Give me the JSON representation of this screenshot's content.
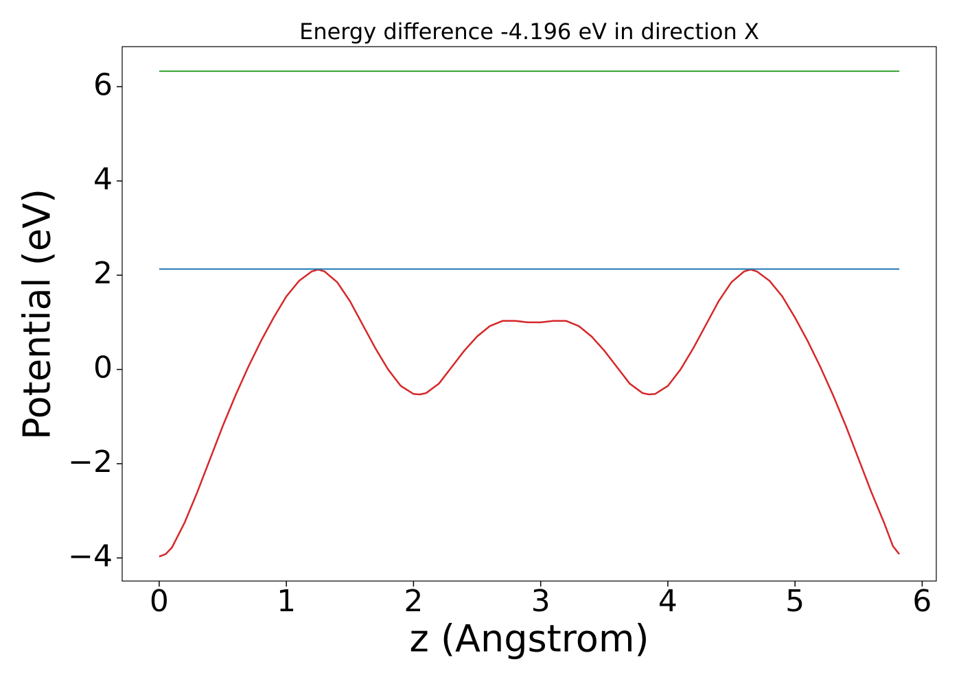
{
  "chart_data": {
    "type": "line",
    "title": "Energy difference -4.196 eV in direction X",
    "xlabel": "z (Angstrom)",
    "ylabel": "Potential (eV)",
    "xlim": [
      -0.291,
      6.111
    ],
    "ylim": [
      -4.49,
      6.85
    ],
    "xticks": [
      0,
      1,
      2,
      3,
      4,
      5,
      6
    ],
    "yticks": [
      {
        "value": -4,
        "label": "−4"
      },
      {
        "value": -2,
        "label": "−2"
      },
      0,
      2,
      4,
      6
    ],
    "grid": false,
    "series": [
      {
        "color": "#d62728",
        "x": [
          0,
          0.05,
          0.1,
          0.2,
          0.3,
          0.4,
          0.5,
          0.6,
          0.7,
          0.8,
          0.9,
          1.0,
          1.1,
          1.2,
          1.25,
          1.3,
          1.4,
          1.5,
          1.6,
          1.7,
          1.8,
          1.9,
          2.0,
          2.05,
          2.1,
          2.2,
          2.3,
          2.4,
          2.5,
          2.6,
          2.7,
          2.8,
          2.9,
          3.0,
          3.1,
          3.2,
          3.3,
          3.4,
          3.5,
          3.6,
          3.7,
          3.8,
          3.85,
          3.9,
          4.0,
          4.1,
          4.2,
          4.3,
          4.4,
          4.5,
          4.6,
          4.65,
          4.7,
          4.8,
          4.9,
          5.0,
          5.1,
          5.2,
          5.3,
          5.4,
          5.5,
          5.6,
          5.7,
          5.77,
          5.82
        ],
        "values": [
          -3.97,
          -3.92,
          -3.78,
          -3.25,
          -2.6,
          -1.9,
          -1.2,
          -0.55,
          0.05,
          0.6,
          1.1,
          1.55,
          1.88,
          2.08,
          2.12,
          2.08,
          1.85,
          1.45,
          0.95,
          0.45,
          0.0,
          -0.35,
          -0.52,
          -0.53,
          -0.5,
          -0.3,
          0.05,
          0.4,
          0.7,
          0.92,
          1.03,
          1.03,
          1.0,
          1.0,
          1.03,
          1.03,
          0.92,
          0.7,
          0.4,
          0.05,
          -0.3,
          -0.5,
          -0.53,
          -0.52,
          -0.35,
          0.0,
          0.45,
          0.95,
          1.45,
          1.85,
          2.08,
          2.12,
          2.08,
          1.88,
          1.55,
          1.1,
          0.6,
          0.05,
          -0.55,
          -1.2,
          -1.9,
          -2.6,
          -3.25,
          -3.75,
          -3.92
        ]
      },
      {
        "color": "#1f77b4",
        "x": [
          0,
          5.82
        ],
        "values": [
          2.13,
          2.13
        ]
      },
      {
        "color": "#2ca02c",
        "x": [
          0,
          5.82
        ],
        "values": [
          6.33,
          6.33
        ]
      }
    ]
  }
}
